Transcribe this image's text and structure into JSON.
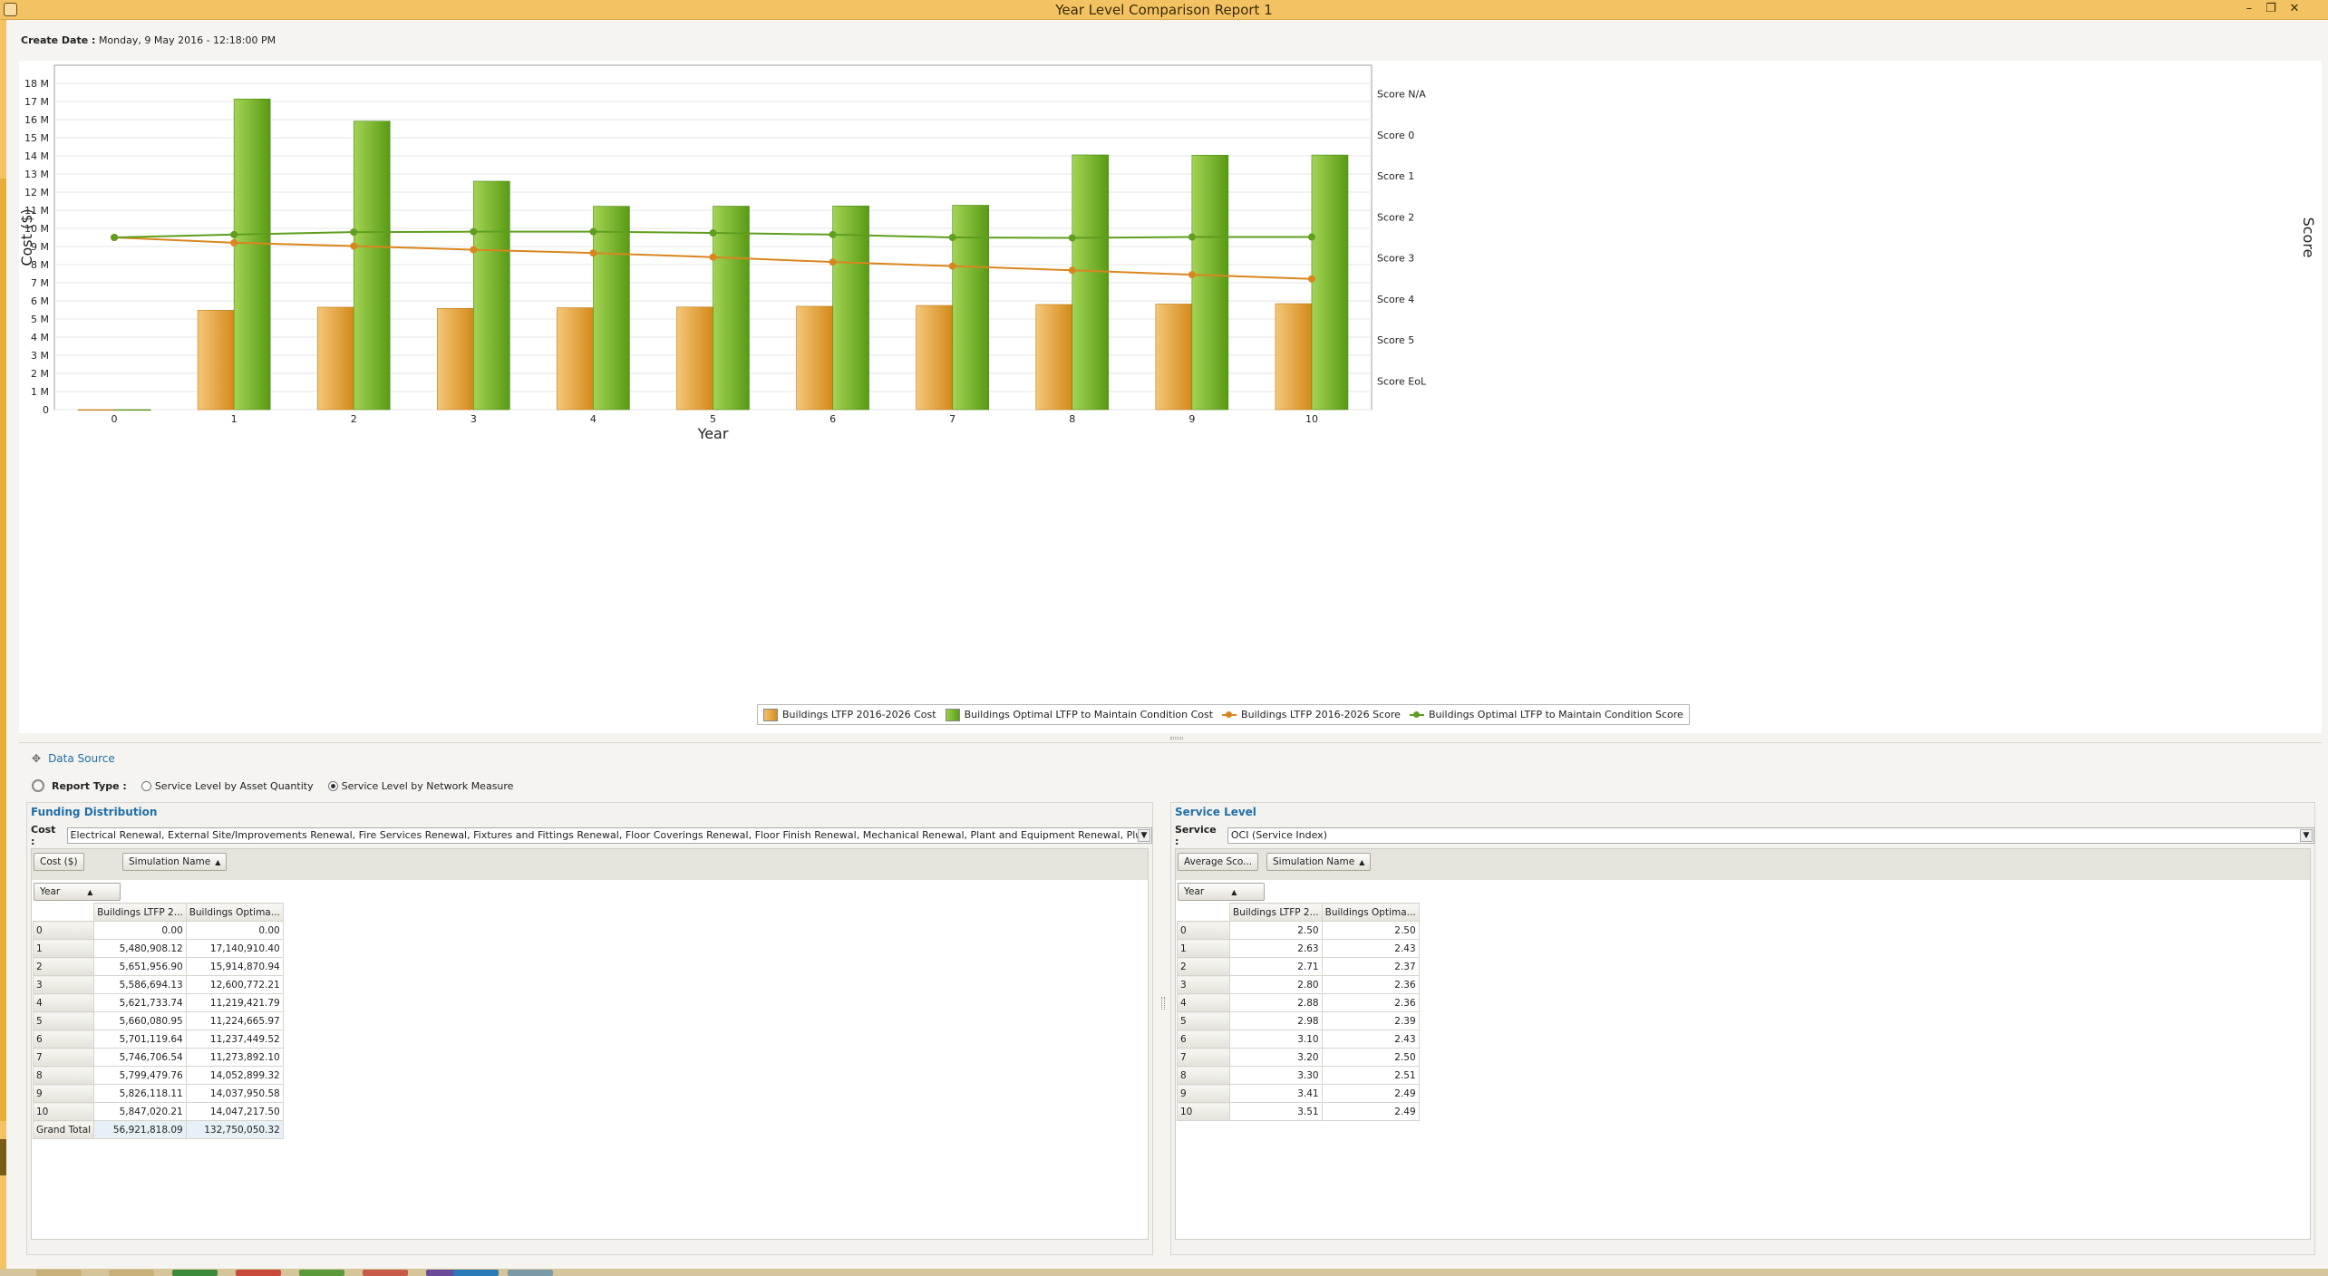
{
  "window": {
    "title": "Year Level Comparison Report 1"
  },
  "create_date": {
    "label": "Create Date :",
    "value": "Monday, 9 May 2016 - 12:18:00 PM"
  },
  "chart_data": {
    "type": "bar",
    "xlabel": "Year",
    "ylabel": "Cost ($)",
    "y2label": "Score",
    "categories": [
      "0",
      "1",
      "2",
      "3",
      "4",
      "5",
      "6",
      "7",
      "8",
      "9",
      "10"
    ],
    "ylim": [
      0,
      19000000
    ],
    "y_ticks": [
      "0",
      "1 M",
      "2 M",
      "3 M",
      "4 M",
      "5 M",
      "6 M",
      "7 M",
      "8 M",
      "9 M",
      "10 M",
      "11 M",
      "12 M",
      "13 M",
      "14 M",
      "15 M",
      "16 M",
      "17 M",
      "18 M"
    ],
    "y2_ticks": [
      "Score N/A",
      "Score 0",
      "Score 1",
      "Score 2",
      "Score 3",
      "Score 4",
      "Score 5",
      "Score EoL"
    ],
    "y2_tick_values": [
      -1,
      0,
      1,
      2,
      3,
      4,
      5,
      6
    ],
    "y2_range_note": "reversed axis",
    "y2lim": [
      6.7,
      -1.7
    ],
    "series": [
      {
        "name": "Buildings LTFP 2016-2026 Cost",
        "kind": "bar",
        "color": "#e8a53a",
        "values": [
          0,
          5480908.12,
          5651956.9,
          5586694.13,
          5621733.74,
          5660080.95,
          5701119.64,
          5746706.54,
          5799479.76,
          5826118.11,
          5847020.21
        ]
      },
      {
        "name": "Buildings Optimal LTFP to Maintain Condition Cost",
        "kind": "bar",
        "color": "#7ab82e",
        "values": [
          0,
          17140910.4,
          15914870.94,
          12600772.21,
          11219421.79,
          11224665.97,
          11237449.52,
          11273892.1,
          14052899.32,
          14037950.58,
          14047217.5
        ]
      },
      {
        "name": "Buildings LTFP 2016-2026 Score",
        "kind": "line",
        "color": "#d9861f",
        "values": [
          2.5,
          2.63,
          2.71,
          2.8,
          2.88,
          2.98,
          3.1,
          3.2,
          3.3,
          3.41,
          3.51
        ]
      },
      {
        "name": "Buildings Optimal LTFP to Maintain Condition Score",
        "kind": "line",
        "color": "#5f9e1e",
        "values": [
          2.5,
          2.43,
          2.37,
          2.36,
          2.36,
          2.39,
          2.43,
          2.5,
          2.51,
          2.49,
          2.49
        ]
      }
    ]
  },
  "data_source": {
    "header": "Data Source",
    "report_type_label": "Report Type :",
    "options": [
      "Service Level by Asset Quantity",
      "Service Level by Network Measure"
    ],
    "selected_option": "Service Level by Network Measure"
  },
  "funding": {
    "title": "Funding Distribution",
    "cost_label": "Cost :",
    "cost_value": "Electrical Renewal, External Site/Improvements Renewal, Fire Services Renewal, Fixtures and Fittings Renewal, Floor Coverings Renewal, Floor Finish Renewal, Mechanical Renewal, Plant and Equipment Renewal, Plumbing/Fittings Rene...",
    "data_button": "Cost ($)",
    "column_field": "Simulation Name",
    "row_field": "Year",
    "col_headers": [
      "Buildings LTFP 2...",
      "Buildings Optima..."
    ],
    "rows": [
      [
        "0",
        "0.00",
        "0.00"
      ],
      [
        "1",
        "5,480,908.12",
        "17,140,910.40"
      ],
      [
        "2",
        "5,651,956.90",
        "15,914,870.94"
      ],
      [
        "3",
        "5,586,694.13",
        "12,600,772.21"
      ],
      [
        "4",
        "5,621,733.74",
        "11,219,421.79"
      ],
      [
        "5",
        "5,660,080.95",
        "11,224,665.97"
      ],
      [
        "6",
        "5,701,119.64",
        "11,237,449.52"
      ],
      [
        "7",
        "5,746,706.54",
        "11,273,892.10"
      ],
      [
        "8",
        "5,799,479.76",
        "14,052,899.32"
      ],
      [
        "9",
        "5,826,118.11",
        "14,037,950.58"
      ],
      [
        "10",
        "5,847,020.21",
        "14,047,217.50"
      ]
    ],
    "total": [
      "Grand Total",
      "56,921,818.09",
      "132,750,050.32"
    ]
  },
  "service": {
    "title": "Service Level",
    "service_label": "Service :",
    "service_value": "OCI (Service Index)",
    "data_button": "Average Sco...",
    "column_field": "Simulation Name",
    "row_field": "Year",
    "col_headers": [
      "Buildings LTFP 2...",
      "Buildings Optima..."
    ],
    "rows": [
      [
        "0",
        "2.50",
        "2.50"
      ],
      [
        "1",
        "2.63",
        "2.43"
      ],
      [
        "2",
        "2.71",
        "2.37"
      ],
      [
        "3",
        "2.80",
        "2.36"
      ],
      [
        "4",
        "2.88",
        "2.36"
      ],
      [
        "5",
        "2.98",
        "2.39"
      ],
      [
        "6",
        "3.10",
        "2.43"
      ],
      [
        "7",
        "3.20",
        "2.50"
      ],
      [
        "8",
        "3.30",
        "2.51"
      ],
      [
        "9",
        "3.41",
        "2.49"
      ],
      [
        "10",
        "3.51",
        "2.49"
      ]
    ]
  },
  "icons": {
    "app": "app-icon",
    "minimize": "minimize-icon",
    "restore": "restore-icon",
    "close": "close-icon",
    "pin": "pin-icon",
    "settings": "gear-icon",
    "sort": "sort-ascending-icon",
    "dropdown": "chevron-down-icon"
  }
}
